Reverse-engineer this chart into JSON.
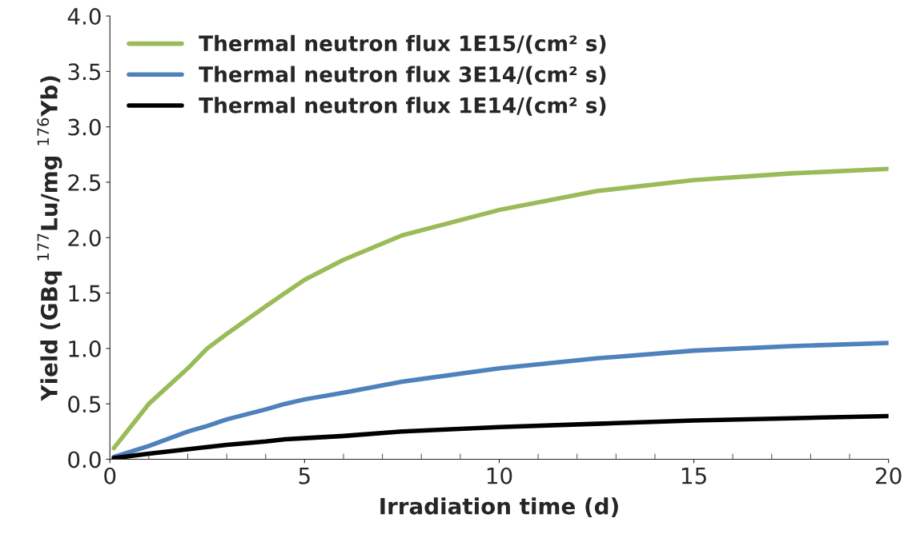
{
  "chart_data": {
    "type": "line",
    "xlabel": "Irradiation time (d)",
    "ylabel": "Yield (GBq $^{177}$Lu/mg $^{176}$Yb)",
    "xlim": [
      0,
      20
    ],
    "xticks": [
      0,
      5,
      10,
      15,
      20
    ],
    "ylim": [
      0,
      4
    ],
    "yticks": [
      {
        "value": 0,
        "label": "0.0"
      },
      {
        "value": 0.5,
        "label": "0.5"
      },
      {
        "value": 1,
        "label": "1.0"
      },
      {
        "value": 1.5,
        "label": "1.5"
      },
      {
        "value": 2,
        "label": "2.0"
      },
      {
        "value": 2.5,
        "label": "2.5"
      },
      {
        "value": 3,
        "label": "3.0"
      },
      {
        "value": 3.5,
        "label": "3.5"
      },
      {
        "value": 4,
        "label": "4.0"
      }
    ],
    "grid": false,
    "legend": "top left",
    "marker": "none",
    "line_style": "solid",
    "x": [
      0.1,
      1,
      2,
      2.5,
      3,
      4,
      4.5,
      5,
      6,
      7.5,
      10,
      12.5,
      15,
      17.5,
      20
    ],
    "series": [
      {
        "name": "Thermal neutron flux 1E15/(cm² s)",
        "color": "#9bbb59",
        "values": [
          0.1,
          0.5,
          0.82,
          1.0,
          1.13,
          1.38,
          1.5,
          1.62,
          1.8,
          2.02,
          2.25,
          2.42,
          2.52,
          2.58,
          2.62
        ]
      },
      {
        "name": "Thermal neutron flux 3E14/(cm² s)",
        "color": "#4f81bd",
        "values": [
          0.02,
          0.12,
          0.25,
          0.3,
          0.36,
          0.45,
          0.5,
          0.54,
          0.6,
          0.7,
          0.82,
          0.91,
          0.98,
          1.02,
          1.05
        ]
      },
      {
        "name": "Thermal neutron flux 1E14/(cm² s)",
        "color": "#000000",
        "values": [
          0.01,
          0.05,
          0.09,
          0.11,
          0.13,
          0.16,
          0.18,
          0.19,
          0.21,
          0.25,
          0.29,
          0.32,
          0.35,
          0.37,
          0.39
        ]
      }
    ]
  }
}
